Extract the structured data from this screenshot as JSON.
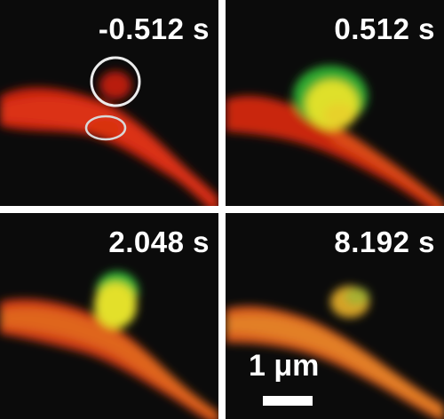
{
  "panels": [
    {
      "time_label": "-0.512 s"
    },
    {
      "time_label": "0.512 s"
    },
    {
      "time_label": "2.048 s"
    },
    {
      "time_label": "8.192 s"
    }
  ],
  "scale_bar": {
    "label": "1 μm"
  },
  "colors": {
    "background": "#0b0b0b",
    "filament_red": "#d42a12",
    "filament_orange": "#e0641c",
    "signal_green": "#3fbf3a",
    "overlap_yellow": "#e6e22a",
    "annotation_circle": "#e8e8e8"
  }
}
